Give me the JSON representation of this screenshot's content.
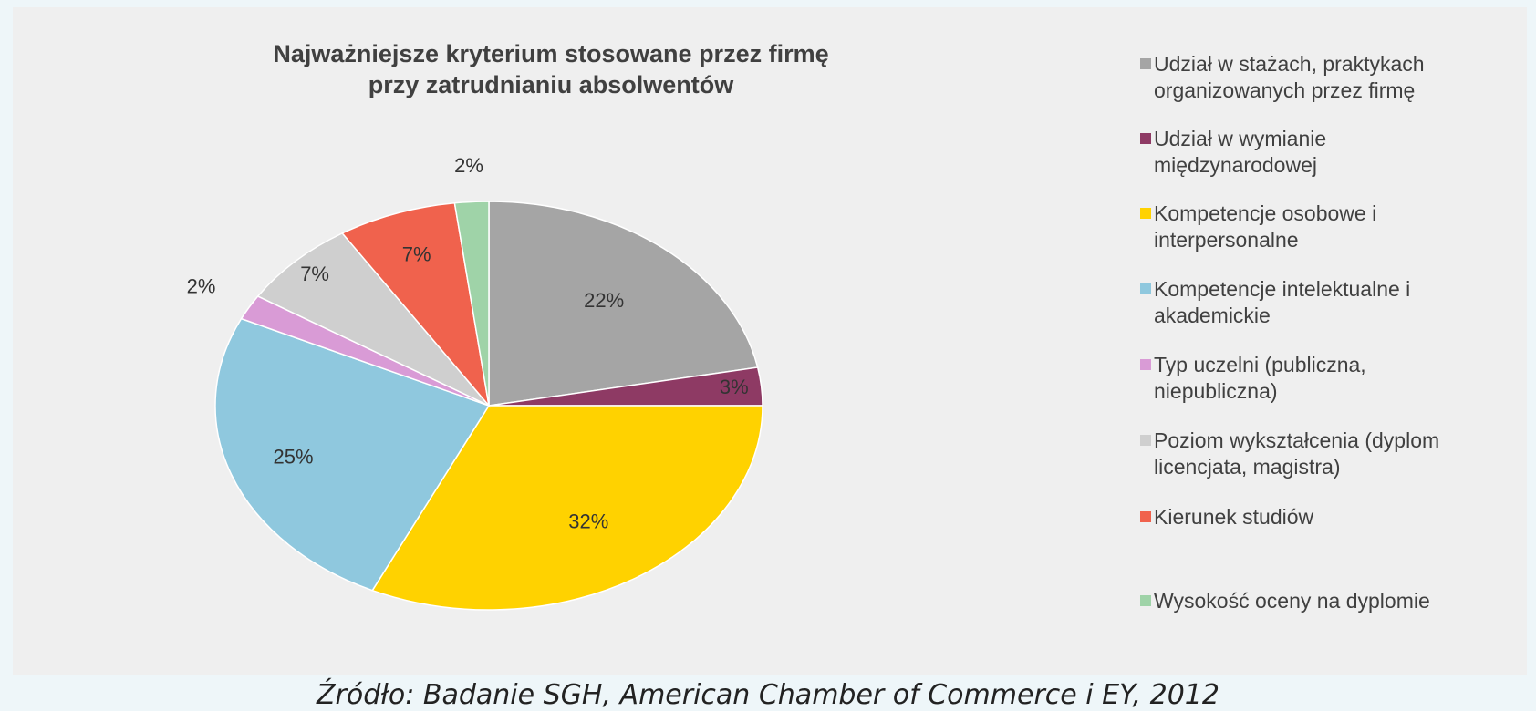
{
  "chart_data": {
    "type": "pie",
    "title": "Najważniejsze kryterium stosowane przez firmę przy zatrudnianiu absolwentów",
    "title_lines": [
      "Najważniejsze kryterium stosowane przez firmę",
      "przy zatrudnianiu absolwentów"
    ],
    "legend_placement": "right",
    "slices": [
      {
        "label": "Udział w stażach, praktykach\norganizowanych przez firmę",
        "value": 22,
        "display": "22%",
        "color": "#a5a5a5"
      },
      {
        "label": "Udział w wymianie\nmiędzynarodowej",
        "value": 3,
        "display": "3%",
        "color": "#8e3a64"
      },
      {
        "label": "Kompetencje osobowe i\ninterpersonalne",
        "value": 32,
        "display": "32%",
        "color": "#ffd200"
      },
      {
        "label": "Kompetencje intelektualne i\nakademickie",
        "value": 25,
        "display": "25%",
        "color": "#8fc8de"
      },
      {
        "label": "Typ uczelni (publiczna,\nniepubliczna)",
        "value": 2,
        "display": "2%",
        "color": "#d99bd6"
      },
      {
        "label": "Poziom wykształcenia (dyplom\nlicencjata, magistra)",
        "value": 7,
        "display": "7%",
        "color": "#cfcfcf"
      },
      {
        "label": "Kierunek studiów",
        "value": 7,
        "display": "7%",
        "color": "#f0624d"
      },
      {
        "label": "Wysokość oceny na dyplomie",
        "value": 2,
        "display": "2%",
        "color": "#9fd3a8"
      }
    ]
  },
  "source": "Źródło: Badanie SGH, American Chamber of Commerce i EY, 2012"
}
